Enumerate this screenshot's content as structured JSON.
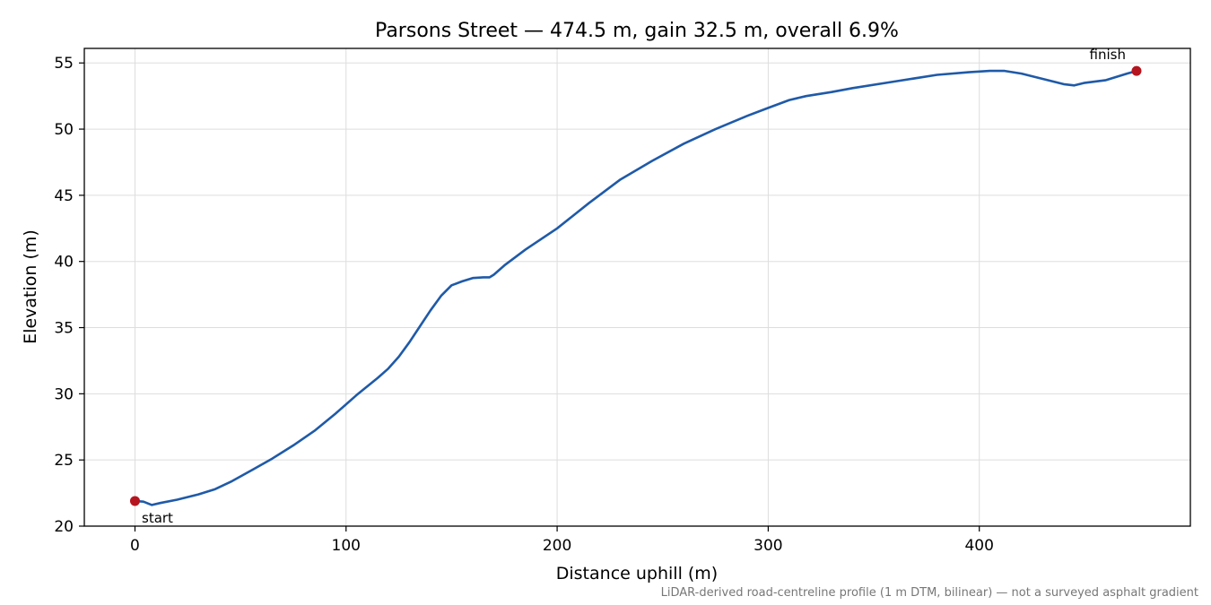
{
  "chart_data": {
    "type": "line",
    "title": "Parsons Street — 474.5 m, gain 32.5 m, overall 6.9%",
    "xlabel": "Distance uphill (m)",
    "ylabel": "Elevation (m)",
    "xlim": [
      -24,
      500
    ],
    "ylim": [
      20,
      56.1
    ],
    "xticks": [
      0,
      100,
      200,
      300,
      400
    ],
    "yticks": [
      20,
      25,
      30,
      35,
      40,
      45,
      50,
      55
    ],
    "grid": true,
    "colors": {
      "line": "#1f5aa8",
      "marker": "#b5151f",
      "grid": "#dddddd",
      "footnote": "#777777"
    },
    "series": [
      {
        "x": [
          0,
          4,
          8,
          12,
          20,
          30,
          38,
          46,
          55,
          65,
          75,
          85,
          95,
          105,
          115,
          120,
          125,
          130,
          135,
          140,
          145,
          150,
          155,
          160,
          165,
          168,
          170,
          175,
          185,
          200,
          215,
          230,
          245,
          260,
          275,
          290,
          300,
          310,
          318,
          330,
          340,
          360,
          380,
          395,
          405,
          412,
          420,
          430,
          440,
          445,
          450,
          460,
          470,
          474.5
        ],
        "y": [
          21.9,
          21.85,
          21.6,
          21.75,
          22.0,
          22.4,
          22.8,
          23.4,
          24.2,
          25.1,
          26.1,
          27.2,
          28.5,
          29.9,
          31.2,
          31.9,
          32.8,
          33.9,
          35.1,
          36.3,
          37.4,
          38.2,
          38.5,
          38.75,
          38.8,
          38.8,
          39.0,
          39.7,
          40.9,
          42.5,
          44.4,
          46.2,
          47.6,
          48.9,
          50.0,
          51.0,
          51.6,
          52.2,
          52.5,
          52.8,
          53.1,
          53.6,
          54.1,
          54.3,
          54.4,
          54.4,
          54.2,
          53.8,
          53.4,
          53.3,
          53.5,
          53.7,
          54.2,
          54.4
        ]
      }
    ],
    "annotations": {
      "start": {
        "label": "start",
        "x": 0,
        "y": 21.9
      },
      "finish": {
        "label": "finish",
        "x": 474.5,
        "y": 54.4
      }
    },
    "footnote": "LiDAR-derived road-centreline profile (1 m DTM, bilinear) — not a surveyed asphalt gradient"
  }
}
